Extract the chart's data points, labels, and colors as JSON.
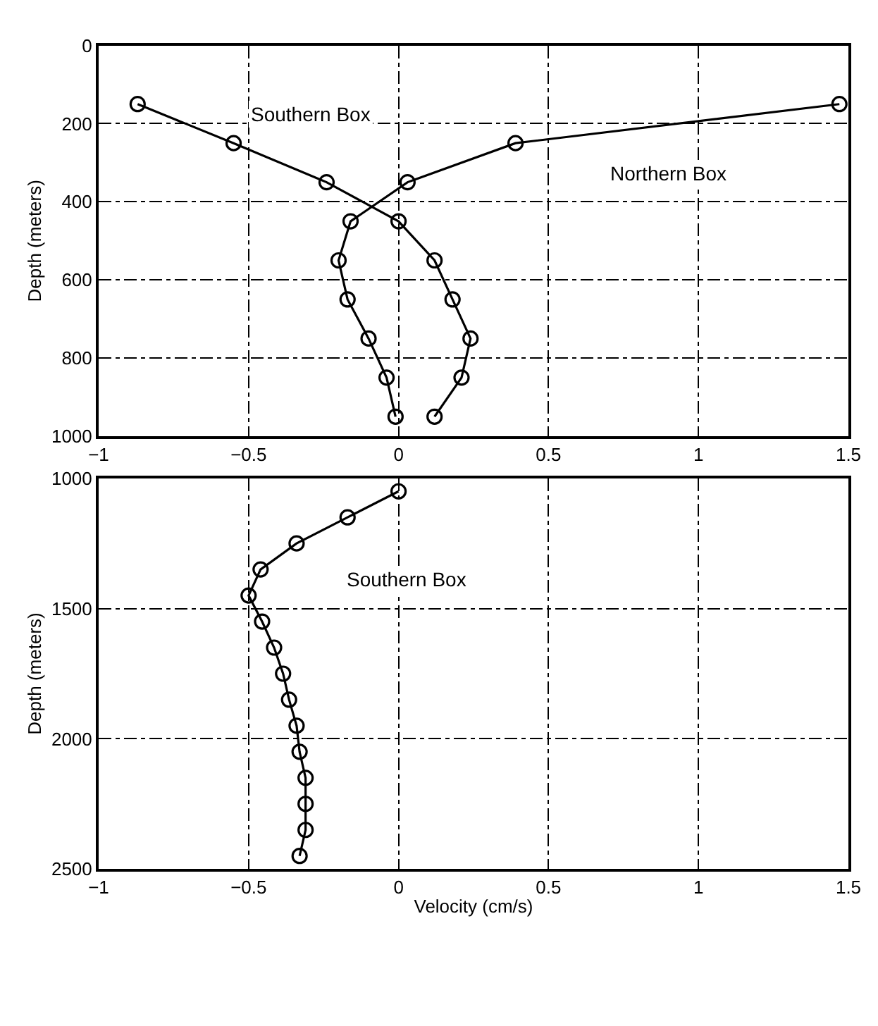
{
  "chart_data": [
    {
      "type": "line",
      "ylabel": "Depth (meters)",
      "xlim": [
        -1,
        1.5
      ],
      "xticks": [
        -1,
        -0.5,
        0,
        0.5,
        1,
        1.5
      ],
      "ylim": [
        1000,
        0
      ],
      "yticks": [
        0,
        200,
        400,
        600,
        800,
        1000
      ],
      "grid": true,
      "marker": "circle",
      "line_style": "solid",
      "series": [
        {
          "color": "#000000",
          "x": [
            -0.87,
            -0.55,
            -0.24,
            0.0,
            0.12,
            0.18,
            0.24,
            0.21,
            0.12
          ],
          "values": [
            150,
            250,
            350,
            450,
            550,
            650,
            750,
            850,
            950
          ]
        },
        {
          "color": "#000000",
          "x": [
            1.47,
            0.39,
            0.03,
            -0.16,
            -0.2,
            -0.17,
            -0.1,
            -0.04,
            -0.01
          ],
          "values": [
            150,
            250,
            350,
            450,
            550,
            650,
            750,
            850,
            950
          ]
        }
      ],
      "annotations": [
        "Southern Box",
        "Northern Box"
      ]
    },
    {
      "type": "line",
      "ylabel": "Depth (meters)",
      "xlabel": "Velocity (cm/s)",
      "xlim": [
        -1,
        1.5
      ],
      "xticks": [
        -1,
        -0.5,
        0,
        0.5,
        1,
        1.5
      ],
      "ylim": [
        2500,
        1000
      ],
      "yticks": [
        1000,
        1500,
        2000,
        2500
      ],
      "grid": true,
      "marker": "circle",
      "line_style": "solid",
      "series": [
        {
          "color": "#000000",
          "x": [
            0.0,
            -0.17,
            -0.34,
            -0.46,
            -0.5,
            -0.455,
            -0.415,
            -0.385,
            -0.365,
            -0.34,
            -0.33,
            -0.31,
            -0.31,
            -0.31,
            -0.33
          ],
          "values": [
            1050,
            1150,
            1250,
            1350,
            1450,
            1550,
            1650,
            1750,
            1850,
            1950,
            2050,
            2150,
            2250,
            2350,
            2450
          ]
        }
      ],
      "annotations": [
        "Southern Box"
      ]
    }
  ]
}
